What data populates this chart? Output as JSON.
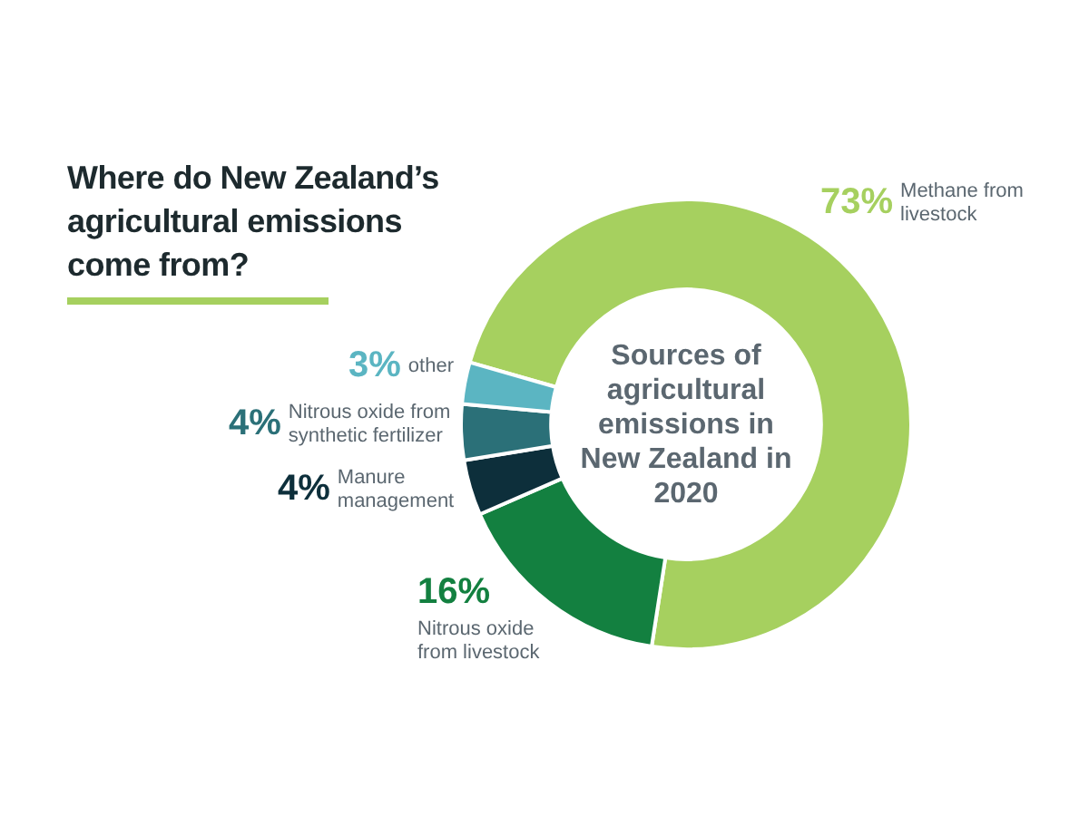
{
  "chart_data": {
    "type": "donut",
    "title": "Where do New Zealand’s agricultural emissions come from?",
    "categories": [
      "Methane from livestock",
      "Nitrous oxide from livestock",
      "Manure management",
      "Nitrous oxide from synthetic fertilizer",
      "other"
    ],
    "values": [
      73,
      16,
      4,
      4,
      3
    ],
    "value_labels": [
      "73%",
      "16%",
      "4%",
      "4%",
      "3%"
    ],
    "colors": [
      "#a6d05f",
      "#138040",
      "#0d2f3b",
      "#2b7078",
      "#5bb5c2"
    ],
    "annotations": [
      "Sources of agricultural emissions in New Zealand in 2020"
    ],
    "legend": false
  }
}
